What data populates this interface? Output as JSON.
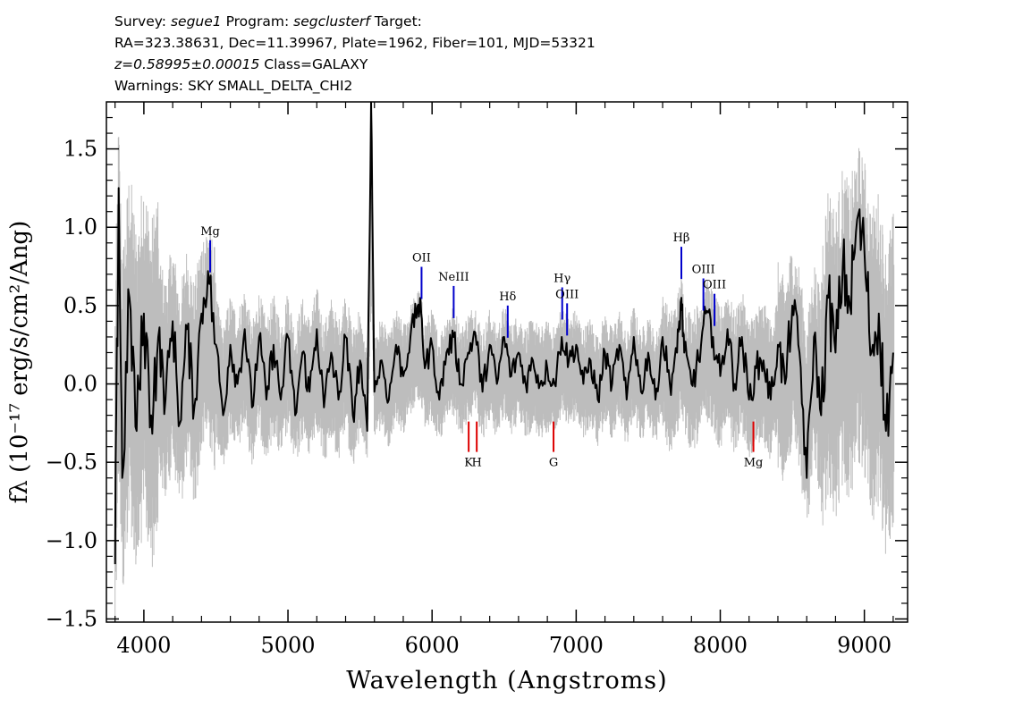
{
  "header": {
    "survey_label": "Survey:",
    "survey": "segue1",
    "program_label": "Program:",
    "program": "segclusterf",
    "target_label": "Target:",
    "line2": "RA=323.38631, Dec=11.39967, Plate=1962, Fiber=101, MJD=53321",
    "redshift": "z=0.58995±0.00015",
    "class_text": "Class=GALAXY",
    "warnings": "Warnings: SKY SMALL_DELTA_CHI2"
  },
  "chart_data": {
    "type": "line",
    "xlabel": "Wavelength (Angstroms)",
    "ylabel": "fλ (10⁻¹⁷ erg/s/cm²/Ang)",
    "xlim": [
      3740,
      9300
    ],
    "ylim": [
      -1.52,
      1.8
    ],
    "xticks": [
      4000,
      5000,
      6000,
      7000,
      8000,
      9000
    ],
    "xtick_labels": [
      "4000",
      "5000",
      "6000",
      "7000",
      "8000",
      "9000"
    ],
    "yticks": [
      -1.5,
      -1.0,
      -0.5,
      0.0,
      0.5,
      1.0,
      1.5
    ],
    "ytick_labels": [
      "−1.5",
      "−1.0",
      "−0.5",
      "0.0",
      "0.5",
      "1.0",
      "1.5"
    ],
    "colors": {
      "flux": "#000000",
      "error": "#bdbdbd",
      "emission": "#0000cc",
      "absorption": "#dd0000"
    },
    "series": [
      {
        "role": "flux",
        "x": [
          3800,
          3825,
          3850,
          3900,
          3950,
          4000,
          4050,
          4100,
          4150,
          4200,
          4250,
          4300,
          4350,
          4400,
          4445,
          4500,
          4550,
          4600,
          4650,
          4700,
          4750,
          4800,
          4850,
          4900,
          4950,
          5000,
          5050,
          5100,
          5150,
          5200,
          5250,
          5300,
          5350,
          5400,
          5450,
          5500,
          5550,
          5577,
          5600,
          5650,
          5700,
          5750,
          5800,
          5850,
          5900,
          5925,
          5950,
          6000,
          6050,
          6100,
          6150,
          6200,
          6250,
          6300,
          6350,
          6400,
          6450,
          6500,
          6550,
          6600,
          6650,
          6700,
          6750,
          6800,
          6850,
          6900,
          6950,
          7000,
          7050,
          7100,
          7150,
          7200,
          7250,
          7300,
          7350,
          7400,
          7450,
          7500,
          7550,
          7600,
          7650,
          7700,
          7730,
          7750,
          7800,
          7850,
          7900,
          7950,
          8000,
          8050,
          8100,
          8150,
          8200,
          8250,
          8300,
          8350,
          8400,
          8450,
          8500,
          8550,
          8600,
          8650,
          8700,
          8750,
          8800,
          8850,
          8900,
          8950,
          9000,
          9050,
          9100,
          9150,
          9200
        ],
        "y": [
          -1.15,
          1.25,
          -0.6,
          0.55,
          -0.3,
          0.45,
          -0.2,
          0.3,
          -0.1,
          0.4,
          -0.25,
          0.35,
          -0.15,
          0.45,
          0.72,
          0.25,
          -0.2,
          0.25,
          0.0,
          0.35,
          -0.15,
          0.3,
          -0.1,
          0.25,
          -0.1,
          0.3,
          -0.2,
          0.2,
          -0.05,
          0.35,
          -0.15,
          0.2,
          -0.1,
          0.3,
          -0.2,
          0.15,
          -0.3,
          1.8,
          -0.05,
          0.15,
          -0.1,
          0.25,
          0.05,
          0.3,
          0.5,
          0.45,
          0.1,
          0.25,
          -0.1,
          0.2,
          0.3,
          0.0,
          0.2,
          0.33,
          -0.05,
          0.25,
          0.0,
          0.3,
          0.05,
          0.2,
          0.0,
          0.15,
          0.0,
          0.1,
          0.0,
          0.3,
          0.15,
          0.25,
          0.0,
          0.15,
          -0.1,
          0.2,
          0.0,
          0.25,
          -0.1,
          0.3,
          -0.05,
          0.2,
          -0.1,
          0.3,
          0.0,
          0.2,
          0.55,
          0.2,
          0.0,
          0.15,
          0.45,
          0.3,
          0.05,
          0.35,
          0.0,
          0.3,
          -0.1,
          0.1,
          0.15,
          -0.1,
          0.25,
          0.0,
          0.5,
          0.2,
          -0.6,
          0.3,
          -0.2,
          0.55,
          0.2,
          0.75,
          0.5,
          1.05,
          0.85,
          0.2,
          0.45,
          -0.3,
          0.2
        ]
      }
    ],
    "line_markers": [
      {
        "label": "Mg",
        "wavelength": 4460,
        "kind": "emission"
      },
      {
        "label": "OII",
        "wavelength": 5927,
        "kind": "emission"
      },
      {
        "label": "NeIII",
        "wavelength": 6150,
        "kind": "emission"
      },
      {
        "label": "Hδ",
        "wavelength": 6525,
        "kind": "emission"
      },
      {
        "label": "Hγ",
        "wavelength": 6903,
        "kind": "emission"
      },
      {
        "label": "OIII",
        "wavelength": 6937,
        "kind": "emission"
      },
      {
        "label": "Hβ",
        "wavelength": 7730,
        "kind": "emission"
      },
      {
        "label": "OIII",
        "wavelength": 7883,
        "kind": "emission"
      },
      {
        "label": "OIII",
        "wavelength": 7960,
        "kind": "emission"
      },
      {
        "label": "K",
        "wavelength": 6254,
        "kind": "absorption"
      },
      {
        "label": "H",
        "wavelength": 6310,
        "kind": "absorption"
      },
      {
        "label": "G",
        "wavelength": 6843,
        "kind": "absorption"
      },
      {
        "label": "Mg",
        "wavelength": 8230,
        "kind": "absorption"
      }
    ]
  }
}
